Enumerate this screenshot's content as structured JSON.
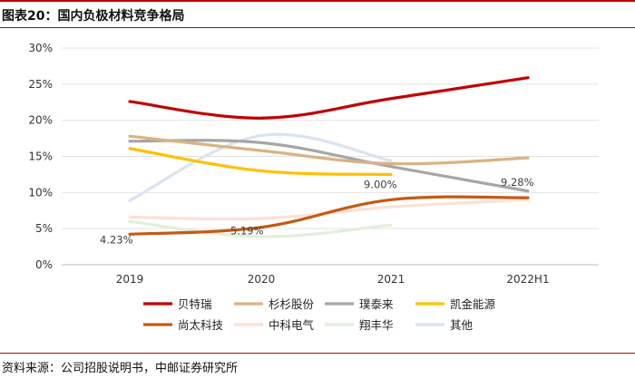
{
  "figure_title": "图表20：国内负极材料竞争格局",
  "source_note": "资料来源：公司招股说明书，中邮证券研究所",
  "chart_data": {
    "type": "line",
    "title": "",
    "xlabel": "",
    "ylabel": "",
    "categories": [
      "2019",
      "2020",
      "2021",
      "2022H1"
    ],
    "ylim": [
      0,
      30
    ],
    "yticks": [
      "0%",
      "5%",
      "10%",
      "15%",
      "20%",
      "25%",
      "30%"
    ],
    "grid": "horizontal",
    "legend_position": "bottom",
    "series": [
      {
        "name": "贝特瑞",
        "color": "#c00000",
        "values": [
          22.6,
          20.3,
          23.0,
          25.9
        ]
      },
      {
        "name": "杉杉股份",
        "color": "#d9b382",
        "values": [
          17.8,
          15.8,
          14.0,
          14.8
        ]
      },
      {
        "name": "璞泰来",
        "color": "#a6a6a6",
        "values": [
          17.1,
          16.9,
          13.6,
          10.2
        ]
      },
      {
        "name": "凯金能源",
        "color": "#ffc000",
        "values": [
          16.1,
          13.0,
          12.5,
          null
        ]
      },
      {
        "name": "尚太科技",
        "color": "#c55a11",
        "values": [
          4.23,
          5.19,
          9.0,
          9.28
        ]
      },
      {
        "name": "中科电气",
        "color": "#fbe1d5",
        "values": [
          6.6,
          6.4,
          8.0,
          9.0
        ]
      },
      {
        "name": "翔丰华",
        "color": "#e2efd9",
        "values": [
          6.0,
          3.9,
          5.5,
          null
        ]
      },
      {
        "name": "其他",
        "color": "#dae3f3",
        "values": [
          8.9,
          17.9,
          14.4,
          null
        ]
      }
    ],
    "data_labels": [
      {
        "series": "尚太科技",
        "category": "2019",
        "text": "4.23%"
      },
      {
        "series": "尚太科技",
        "category": "2020",
        "text": "5.19%"
      },
      {
        "series": "尚太科技",
        "category": "2021",
        "text": "9.00%"
      },
      {
        "series": "尚太科技",
        "category": "2022H1",
        "text": "9.28%"
      }
    ]
  }
}
